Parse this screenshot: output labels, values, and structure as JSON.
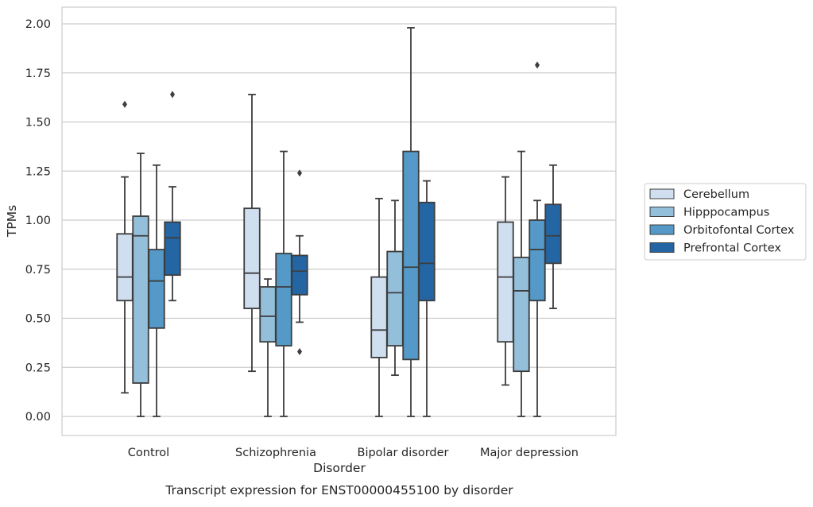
{
  "chart_data": {
    "type": "box",
    "title": "",
    "caption": "Transcript expression for ENST00000455100 by disorder",
    "xlabel": "Disorder",
    "ylabel": "TPMs",
    "ylim": [
      -0.1,
      2.08
    ],
    "yticks": [
      "0.00",
      "0.25",
      "0.50",
      "0.75",
      "1.00",
      "1.25",
      "1.50",
      "1.75",
      "2.00"
    ],
    "grid": true,
    "legend_position": "right",
    "categories": [
      "Control",
      "Schizophrenia",
      "Bipolar disorder",
      "Major depression"
    ],
    "series": [
      {
        "name": "Cerebellum",
        "color": "#cfdff0",
        "boxes": [
          {
            "whisker_low": 0.12,
            "q1": 0.59,
            "median": 0.71,
            "q3": 0.93,
            "whisker_high": 1.22,
            "outliers": [
              1.59
            ]
          },
          {
            "whisker_low": 0.23,
            "q1": 0.55,
            "median": 0.73,
            "q3": 1.06,
            "whisker_high": 1.64,
            "outliers": []
          },
          {
            "whisker_low": 0.0,
            "q1": 0.3,
            "median": 0.44,
            "q3": 0.71,
            "whisker_high": 1.11,
            "outliers": []
          },
          {
            "whisker_low": 0.16,
            "q1": 0.38,
            "median": 0.71,
            "q3": 0.99,
            "whisker_high": 1.22,
            "outliers": []
          }
        ]
      },
      {
        "name": "Hipppocampus",
        "color": "#94bfdb",
        "boxes": [
          {
            "whisker_low": 0.0,
            "q1": 0.17,
            "median": 0.92,
            "q3": 1.02,
            "whisker_high": 1.34,
            "outliers": []
          },
          {
            "whisker_low": 0.0,
            "q1": 0.38,
            "median": 0.51,
            "q3": 0.66,
            "whisker_high": 0.7,
            "outliers": []
          },
          {
            "whisker_low": 0.21,
            "q1": 0.36,
            "median": 0.63,
            "q3": 0.84,
            "whisker_high": 1.1,
            "outliers": []
          },
          {
            "whisker_low": 0.0,
            "q1": 0.23,
            "median": 0.64,
            "q3": 0.81,
            "whisker_high": 1.35,
            "outliers": []
          }
        ]
      },
      {
        "name": "Orbitofontal Cortex",
        "color": "#5499c7",
        "boxes": [
          {
            "whisker_low": 0.0,
            "q1": 0.45,
            "median": 0.69,
            "q3": 0.85,
            "whisker_high": 1.28,
            "outliers": []
          },
          {
            "whisker_low": 0.0,
            "q1": 0.36,
            "median": 0.66,
            "q3": 0.83,
            "whisker_high": 1.35,
            "outliers": []
          },
          {
            "whisker_low": 0.0,
            "q1": 0.29,
            "median": 0.76,
            "q3": 1.35,
            "whisker_high": 1.98,
            "outliers": []
          },
          {
            "whisker_low": 0.0,
            "q1": 0.59,
            "median": 0.85,
            "q3": 1.0,
            "whisker_high": 1.1,
            "outliers": [
              1.79
            ]
          }
        ]
      },
      {
        "name": "Prefrontal Cortex",
        "color": "#2465a4",
        "boxes": [
          {
            "whisker_low": 0.59,
            "q1": 0.72,
            "median": 0.91,
            "q3": 0.99,
            "whisker_high": 1.17,
            "outliers": [
              1.64
            ]
          },
          {
            "whisker_low": 0.48,
            "q1": 0.62,
            "median": 0.74,
            "q3": 0.82,
            "whisker_high": 0.92,
            "outliers": [
              1.24,
              0.33
            ]
          },
          {
            "whisker_low": 0.0,
            "q1": 0.59,
            "median": 0.78,
            "q3": 1.09,
            "whisker_high": 1.2,
            "outliers": []
          },
          {
            "whisker_low": 0.55,
            "q1": 0.78,
            "median": 0.92,
            "q3": 1.08,
            "whisker_high": 1.28,
            "outliers": []
          }
        ]
      }
    ]
  }
}
